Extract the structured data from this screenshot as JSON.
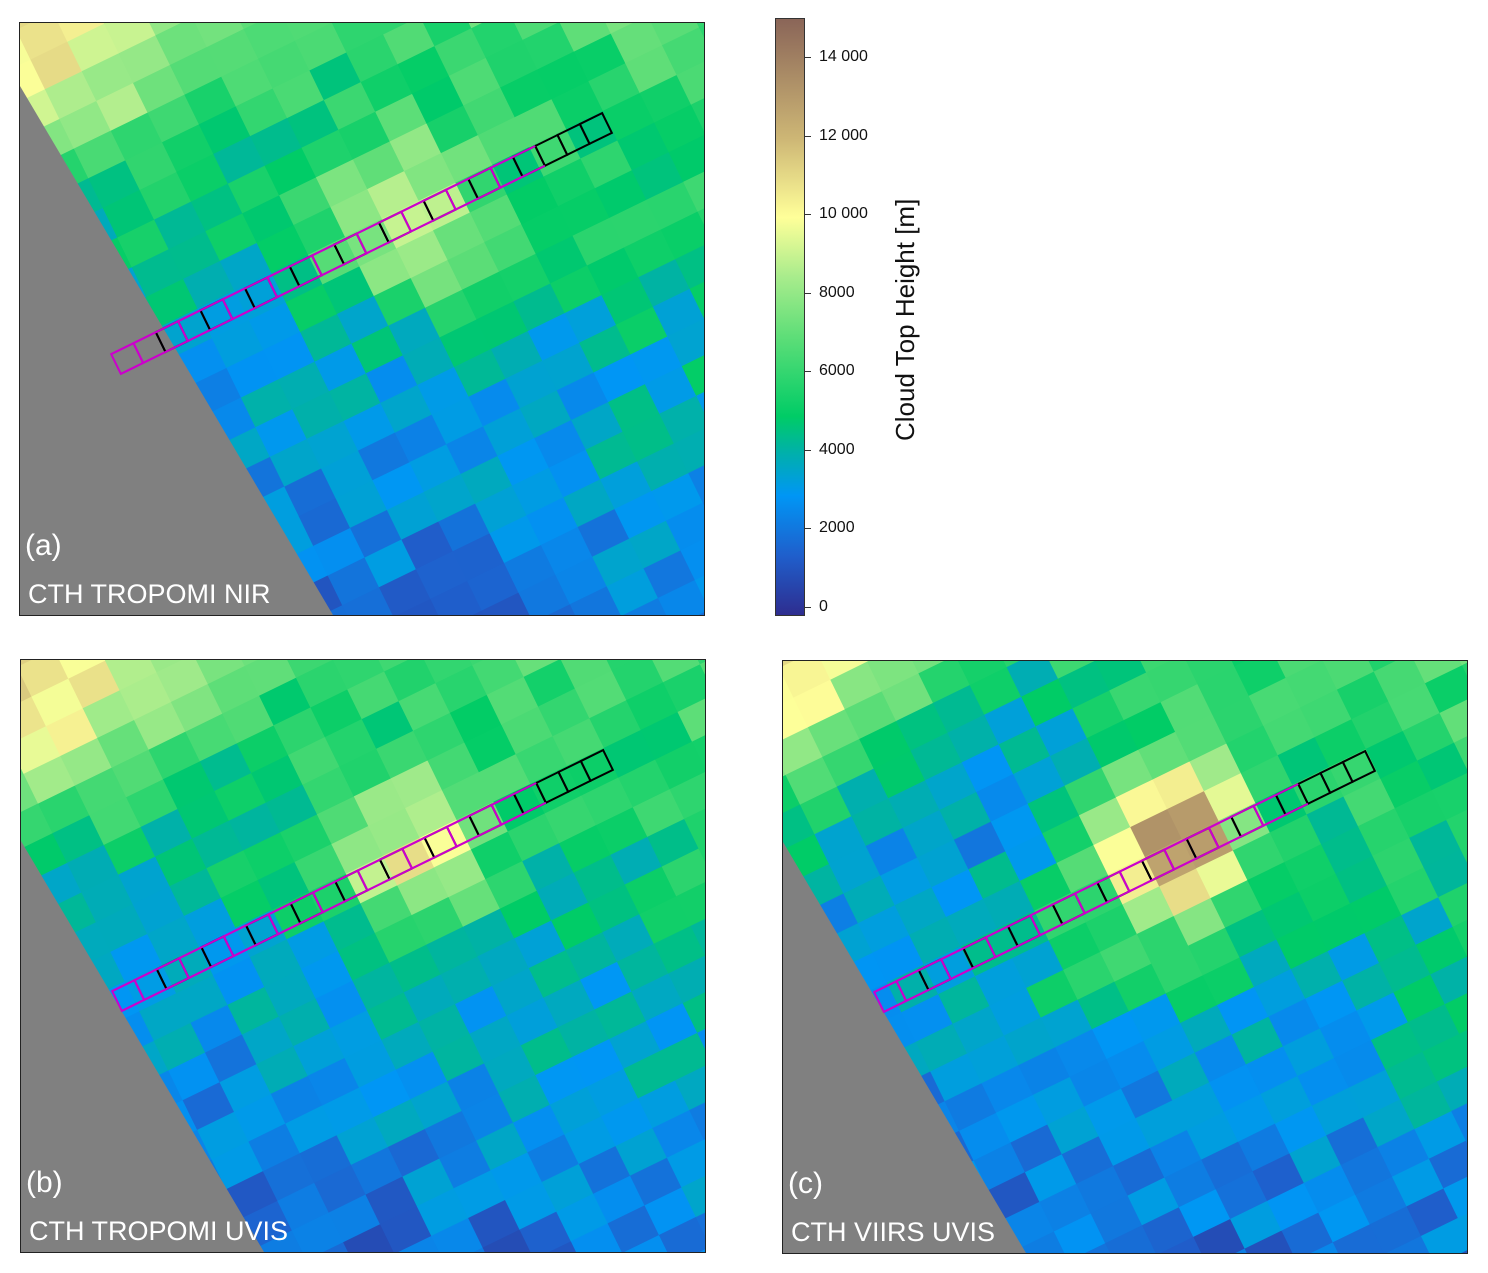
{
  "chart_data": {
    "type": "heatmap",
    "panels": [
      {
        "id": "a",
        "label": "(a)",
        "title": "CTH TROPOMI NIR"
      },
      {
        "id": "b",
        "label": "(b)",
        "title": "CTH TROPOMI UVIS"
      },
      {
        "id": "c",
        "label": "(c)",
        "title": "CTH VIIRS  UVIS"
      }
    ],
    "colorbar": {
      "label": "Cloud Top Height [m]",
      "range": [
        0,
        15000
      ],
      "ticks": [
        0,
        2000,
        4000,
        6000,
        8000,
        10000,
        12000,
        14000
      ],
      "tick_labels": [
        "0",
        "2000",
        "4000",
        "6000",
        "8000",
        "10 000",
        "12 000",
        "14 000"
      ],
      "colormap": [
        {
          "value": 0,
          "color": "#2e2d8f"
        },
        {
          "value": 1500,
          "color": "#1f5fcc"
        },
        {
          "value": 3000,
          "color": "#0096f5"
        },
        {
          "value": 4000,
          "color": "#00aeb0"
        },
        {
          "value": 5000,
          "color": "#00cc66"
        },
        {
          "value": 7000,
          "color": "#5ede78"
        },
        {
          "value": 8500,
          "color": "#a8ec8c"
        },
        {
          "value": 10000,
          "color": "#ffff99"
        },
        {
          "value": 12000,
          "color": "#cdb675"
        },
        {
          "value": 15000,
          "color": "#8a6558"
        }
      ]
    },
    "no_data_color": "#808080",
    "track_colors": {
      "primary": "#cc00cc",
      "secondary": "#000000"
    }
  }
}
